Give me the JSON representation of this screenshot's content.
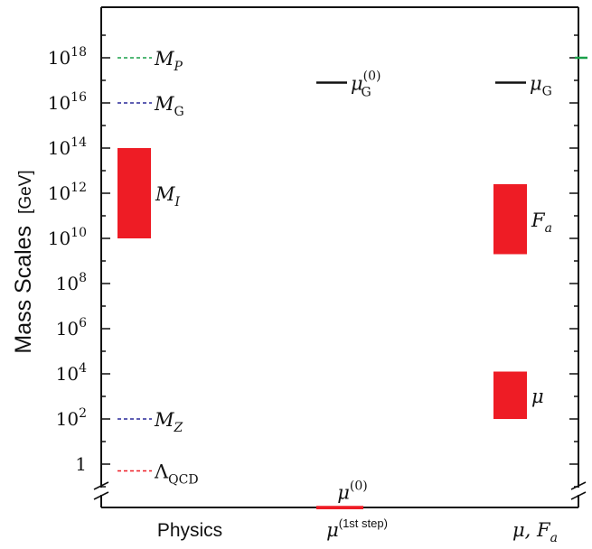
{
  "chart_data": {
    "type": "other",
    "ylabel": "Mass Scales",
    "ylabel_unit": "[GeV]",
    "yscale": "log10",
    "ylim_exponent": [
      -1.5,
      20
    ],
    "yticks": [
      {
        "exp": 0,
        "label": "1"
      },
      {
        "exp": 2,
        "base": "10",
        "sup": "2"
      },
      {
        "exp": 4,
        "base": "10",
        "sup": "4"
      },
      {
        "exp": 6,
        "base": "10",
        "sup": "6"
      },
      {
        "exp": 8,
        "base": "10",
        "sup": "8"
      },
      {
        "exp": 10,
        "base": "10",
        "sup": "10"
      },
      {
        "exp": 12,
        "base": "10",
        "sup": "12"
      },
      {
        "exp": 14,
        "base": "10",
        "sup": "14"
      },
      {
        "exp": 16,
        "base": "10",
        "sup": "16"
      },
      {
        "exp": 18,
        "base": "10",
        "sup": "18"
      }
    ],
    "columns": [
      {
        "label": "Physics"
      },
      {
        "label_main": "μ",
        "label_sup": "(1st step)"
      },
      {
        "label": "μ, F",
        "label_sub": "a"
      }
    ],
    "scales": [
      {
        "column": 0,
        "kind": "dashed",
        "exp": 18.0,
        "color": "#1aa04a",
        "name": "M",
        "sub": "P"
      },
      {
        "column": 0,
        "kind": "dashed",
        "exp": 16.0,
        "color": "#2a2a9a",
        "name": "M",
        "sub": "G"
      },
      {
        "column": 0,
        "kind": "bar",
        "from": 10.0,
        "to": 14.0,
        "color": "#ee1c25",
        "name": "M",
        "sub": "I"
      },
      {
        "column": 0,
        "kind": "dashed",
        "exp": 2.0,
        "color": "#2a2a9a",
        "name": "M",
        "sub": "Z"
      },
      {
        "column": 0,
        "kind": "dashed",
        "exp": -0.3,
        "color": "#ee1c25",
        "name": "Λ",
        "sub": "QCD"
      },
      {
        "column": 1,
        "kind": "solid",
        "exp": 16.9,
        "color": "#111111",
        "name": "μ",
        "sub": "G",
        "sup": "(0)"
      },
      {
        "column": 1,
        "kind": "bar",
        "from": -2.0,
        "to": -1.85,
        "color": "#ee1c25",
        "name": "μ",
        "sup": "(0)"
      },
      {
        "column": 2,
        "kind": "solid",
        "exp": 16.9,
        "color": "#111111",
        "name": "μ",
        "sub": "G"
      },
      {
        "column": 2,
        "kind": "bar",
        "from": 9.3,
        "to": 12.4,
        "color": "#ee1c25",
        "name": "F",
        "sub": "a"
      },
      {
        "column": 2,
        "kind": "bar",
        "from": 2.0,
        "to": 4.1,
        "color": "#ee1c25",
        "name": "μ"
      }
    ],
    "right_edge_marker": {
      "exp": 18.0,
      "color": "#1aa04a"
    },
    "axis_break": true
  }
}
